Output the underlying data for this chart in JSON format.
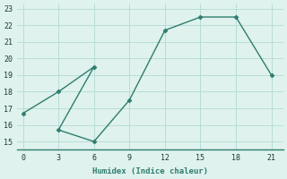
{
  "x": [
    0,
    3,
    6,
    3,
    6,
    9,
    12,
    15,
    18,
    21
  ],
  "y": [
    16.7,
    18.0,
    19.5,
    15.7,
    15.0,
    17.5,
    21.7,
    22.5,
    22.5,
    19.0
  ],
  "line_color": "#2e7d6e",
  "marker_color": "#2e7d6e",
  "bg_color": "#dff2ee",
  "grid_color": "#b8ddd8",
  "xlabel": "Humidex (Indice chaleur)",
  "xlim": [
    -0.5,
    22.0
  ],
  "ylim": [
    14.5,
    23.3
  ],
  "xticks": [
    0,
    3,
    6,
    9,
    12,
    15,
    18,
    21
  ],
  "yticks": [
    15,
    16,
    17,
    18,
    19,
    20,
    21,
    22,
    23
  ]
}
